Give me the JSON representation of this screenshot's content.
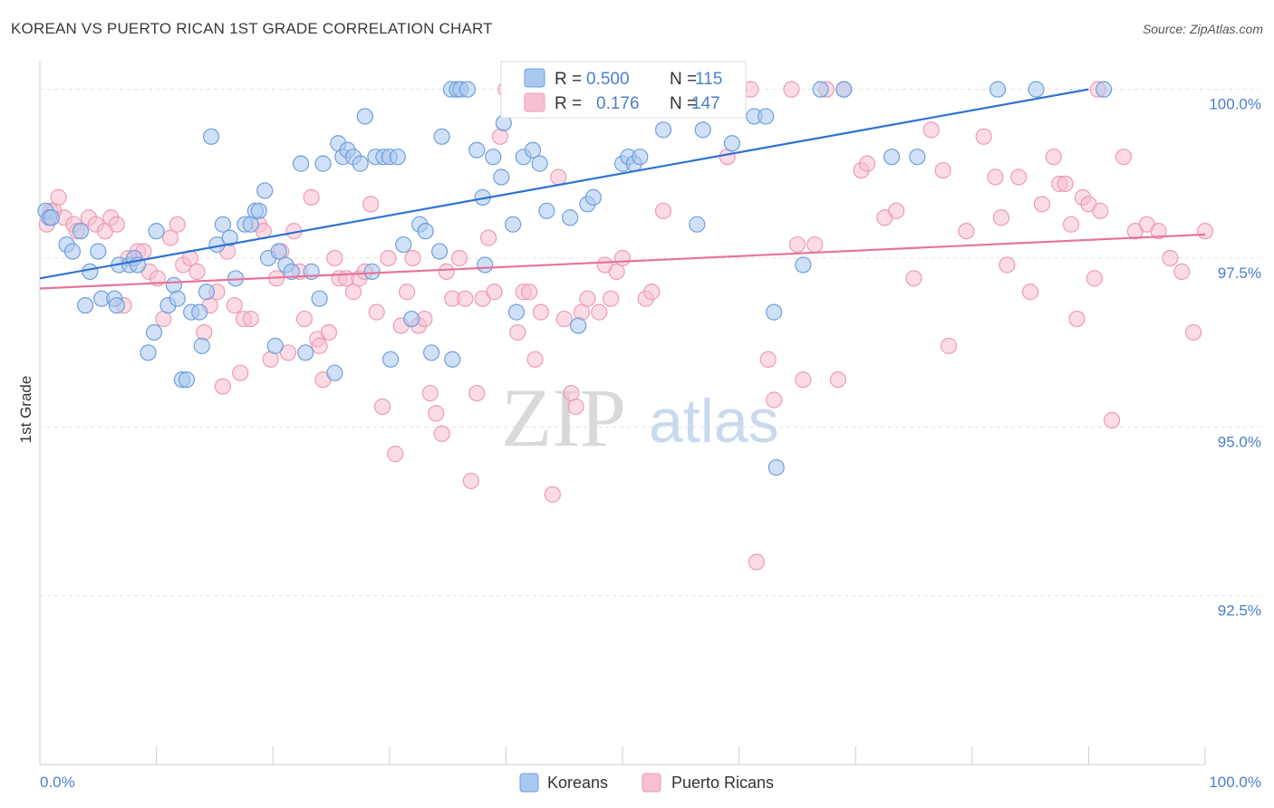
{
  "title": "KOREAN VS PUERTO RICAN 1ST GRADE CORRELATION CHART",
  "source": "Source: ZipAtlas.com",
  "watermark": {
    "zip": "ZIP",
    "atlas": "atlas"
  },
  "colors": {
    "korean_fill": "#a9c8f0",
    "korean_stroke": "#6f9fdc",
    "korean_line": "#2f72d3",
    "pr_fill": "#f7bfd0",
    "pr_stroke": "#ef9ab5",
    "pr_line": "#e8739a",
    "accent_text": "#4a7fcf",
    "grid": "#e0e0e0"
  },
  "legend_top": {
    "rows": [
      {
        "r_label": "R =",
        "r_value": "0.500",
        "n_label": "N =",
        "n_value": "115"
      },
      {
        "r_label": "R =",
        "r_value": "0.176",
        "n_label": "N =",
        "n_value": "147"
      }
    ]
  },
  "legend_bottom": [
    "Koreans",
    "Puerto Ricans"
  ],
  "chart_data": {
    "type": "scatter",
    "title": "KOREAN VS PUERTO RICAN 1ST GRADE CORRELATION CHART",
    "xlabel": "",
    "ylabel": "1st Grade",
    "x_tick_labels": [
      "0.0%",
      "100.0%"
    ],
    "y_tick_labels": [
      "100.0%",
      "97.5%",
      "95.0%",
      "92.5%"
    ],
    "y_ticks": [
      100.0,
      97.5,
      95.0,
      92.5
    ],
    "xlim": [
      0,
      100
    ],
    "ylim": [
      90.0,
      100.25
    ],
    "grid": true,
    "legend_position": "top-center",
    "series": [
      {
        "name": "Koreans",
        "R": 0.5,
        "N": 115,
        "trend": {
          "x": [
            0,
            90
          ],
          "y": [
            97.2,
            100.0
          ]
        },
        "points": [
          [
            0.5,
            98.2
          ],
          [
            0.8,
            98.1
          ],
          [
            1.0,
            98.1
          ],
          [
            2.3,
            97.7
          ],
          [
            2.8,
            97.6
          ],
          [
            3.5,
            97.9
          ],
          [
            3.9,
            96.8
          ],
          [
            4.3,
            97.3
          ],
          [
            5.0,
            97.6
          ],
          [
            5.3,
            96.9
          ],
          [
            6.4,
            96.9
          ],
          [
            6.6,
            96.8
          ],
          [
            6.8,
            97.4
          ],
          [
            7.7,
            97.4
          ],
          [
            8.1,
            97.5
          ],
          [
            8.4,
            97.4
          ],
          [
            9.3,
            96.1
          ],
          [
            9.8,
            96.4
          ],
          [
            10.0,
            97.9
          ],
          [
            11.0,
            96.8
          ],
          [
            11.5,
            97.1
          ],
          [
            11.8,
            96.9
          ],
          [
            12.2,
            95.7
          ],
          [
            12.6,
            95.7
          ],
          [
            13.0,
            96.7
          ],
          [
            13.7,
            96.7
          ],
          [
            13.9,
            96.2
          ],
          [
            14.3,
            97.0
          ],
          [
            14.7,
            99.3
          ],
          [
            15.2,
            97.7
          ],
          [
            15.7,
            98.0
          ],
          [
            16.3,
            97.8
          ],
          [
            16.8,
            97.2
          ],
          [
            17.6,
            98.0
          ],
          [
            18.1,
            98.0
          ],
          [
            18.5,
            98.2
          ],
          [
            18.8,
            98.2
          ],
          [
            19.3,
            98.5
          ],
          [
            19.6,
            97.5
          ],
          [
            20.2,
            96.2
          ],
          [
            20.5,
            97.6
          ],
          [
            21.1,
            97.4
          ],
          [
            21.6,
            97.3
          ],
          [
            22.4,
            98.9
          ],
          [
            22.8,
            96.1
          ],
          [
            23.3,
            97.3
          ],
          [
            24.0,
            96.9
          ],
          [
            24.3,
            98.9
          ],
          [
            25.3,
            95.8
          ],
          [
            25.6,
            99.2
          ],
          [
            26.0,
            99.0
          ],
          [
            26.4,
            99.1
          ],
          [
            26.9,
            99.0
          ],
          [
            27.5,
            98.9
          ],
          [
            27.9,
            99.6
          ],
          [
            28.5,
            97.3
          ],
          [
            28.8,
            99.0
          ],
          [
            29.5,
            99.0
          ],
          [
            30.0,
            99.0
          ],
          [
            30.7,
            99.0
          ],
          [
            31.2,
            97.7
          ],
          [
            31.9,
            96.6
          ],
          [
            32.6,
            98.0
          ],
          [
            33.1,
            97.9
          ],
          [
            33.6,
            96.1
          ],
          [
            34.3,
            97.6
          ],
          [
            34.5,
            99.3
          ],
          [
            35.3,
            100.0
          ],
          [
            35.8,
            100.0
          ],
          [
            36.1,
            100.0
          ],
          [
            36.7,
            100.0
          ],
          [
            37.5,
            99.1
          ],
          [
            38.0,
            98.4
          ],
          [
            38.2,
            97.4
          ],
          [
            38.9,
            99.0
          ],
          [
            39.6,
            98.7
          ],
          [
            39.8,
            99.5
          ],
          [
            40.6,
            98.0
          ],
          [
            40.9,
            96.7
          ],
          [
            41.5,
            99.0
          ],
          [
            42.3,
            99.1
          ],
          [
            42.9,
            98.9
          ],
          [
            43.5,
            98.2
          ],
          [
            45.5,
            98.1
          ],
          [
            46.2,
            96.5
          ],
          [
            47.0,
            98.3
          ],
          [
            47.5,
            98.4
          ],
          [
            50.0,
            98.9
          ],
          [
            50.5,
            99.0
          ],
          [
            51.0,
            98.9
          ],
          [
            51.5,
            99.0
          ],
          [
            53.0,
            100.0
          ],
          [
            53.5,
            99.4
          ],
          [
            56.4,
            98.0
          ],
          [
            56.9,
            99.4
          ],
          [
            59.4,
            99.2
          ],
          [
            61.3,
            99.6
          ],
          [
            62.3,
            99.6
          ],
          [
            63.0,
            96.7
          ],
          [
            63.2,
            94.4
          ],
          [
            65.5,
            97.4
          ],
          [
            67.0,
            100.0
          ],
          [
            69.0,
            100.0
          ],
          [
            73.1,
            99.0
          ],
          [
            75.3,
            99.0
          ],
          [
            82.2,
            100.0
          ],
          [
            85.5,
            100.0
          ],
          [
            91.3,
            100.0
          ],
          [
            35.4,
            96.0
          ],
          [
            30.1,
            96.0
          ]
        ]
      },
      {
        "name": "Puerto Ricans",
        "R": 0.176,
        "N": 147,
        "trend": {
          "x": [
            0,
            100
          ],
          "y": [
            97.05,
            97.85
          ]
        },
        "points": [
          [
            0.6,
            98.0
          ],
          [
            0.9,
            98.2
          ],
          [
            1.2,
            98.2
          ],
          [
            1.6,
            98.4
          ],
          [
            2.1,
            98.1
          ],
          [
            2.9,
            98.0
          ],
          [
            3.2,
            97.9
          ],
          [
            4.2,
            98.1
          ],
          [
            4.8,
            98.0
          ],
          [
            5.6,
            97.9
          ],
          [
            6.1,
            98.1
          ],
          [
            6.6,
            98.0
          ],
          [
            7.2,
            96.8
          ],
          [
            7.6,
            97.5
          ],
          [
            8.4,
            97.6
          ],
          [
            8.9,
            97.6
          ],
          [
            9.4,
            97.3
          ],
          [
            10.1,
            97.2
          ],
          [
            10.6,
            96.6
          ],
          [
            11.2,
            97.8
          ],
          [
            11.8,
            98.0
          ],
          [
            12.3,
            97.4
          ],
          [
            12.9,
            97.5
          ],
          [
            13.5,
            97.3
          ],
          [
            14.1,
            96.4
          ],
          [
            14.6,
            96.8
          ],
          [
            15.2,
            97.0
          ],
          [
            15.7,
            95.6
          ],
          [
            16.1,
            97.6
          ],
          [
            16.7,
            96.8
          ],
          [
            17.2,
            95.8
          ],
          [
            17.5,
            96.6
          ],
          [
            18.1,
            96.6
          ],
          [
            18.8,
            98.0
          ],
          [
            19.2,
            97.9
          ],
          [
            19.8,
            96.0
          ],
          [
            20.3,
            97.2
          ],
          [
            20.7,
            97.6
          ],
          [
            21.3,
            96.1
          ],
          [
            21.8,
            97.9
          ],
          [
            22.3,
            97.3
          ],
          [
            22.7,
            96.6
          ],
          [
            23.3,
            98.4
          ],
          [
            23.8,
            96.3
          ],
          [
            24.3,
            95.7
          ],
          [
            24.8,
            96.4
          ],
          [
            25.3,
            97.5
          ],
          [
            25.7,
            97.2
          ],
          [
            26.3,
            97.2
          ],
          [
            26.9,
            97.0
          ],
          [
            27.4,
            97.2
          ],
          [
            27.9,
            97.3
          ],
          [
            28.4,
            98.3
          ],
          [
            28.9,
            96.7
          ],
          [
            29.4,
            95.3
          ],
          [
            29.9,
            97.5
          ],
          [
            30.5,
            94.6
          ],
          [
            31.0,
            96.5
          ],
          [
            31.5,
            97.0
          ],
          [
            32.0,
            97.5
          ],
          [
            32.5,
            96.5
          ],
          [
            33.0,
            96.6
          ],
          [
            33.5,
            95.5
          ],
          [
            34.0,
            95.2
          ],
          [
            34.5,
            94.9
          ],
          [
            34.9,
            97.3
          ],
          [
            35.4,
            96.9
          ],
          [
            36.0,
            97.5
          ],
          [
            36.5,
            96.9
          ],
          [
            37.0,
            94.2
          ],
          [
            37.5,
            95.5
          ],
          [
            38.0,
            96.9
          ],
          [
            38.5,
            97.8
          ],
          [
            39.0,
            97.0
          ],
          [
            39.5,
            99.3
          ],
          [
            40.0,
            100.0
          ],
          [
            41.0,
            96.4
          ],
          [
            41.5,
            97.0
          ],
          [
            42.0,
            97.0
          ],
          [
            42.5,
            96.0
          ],
          [
            43.0,
            96.7
          ],
          [
            43.5,
            100.0
          ],
          [
            44.0,
            94.0
          ],
          [
            44.5,
            98.7
          ],
          [
            45.0,
            96.6
          ],
          [
            45.6,
            95.5
          ],
          [
            46.0,
            95.3
          ],
          [
            46.5,
            96.7
          ],
          [
            47.0,
            96.9
          ],
          [
            47.5,
            100.0
          ],
          [
            48.0,
            96.7
          ],
          [
            48.5,
            97.4
          ],
          [
            49.0,
            96.9
          ],
          [
            49.5,
            97.3
          ],
          [
            50.0,
            97.5
          ],
          [
            50.5,
            100.0
          ],
          [
            51.0,
            100.0
          ],
          [
            52.0,
            96.9
          ],
          [
            52.5,
            97.0
          ],
          [
            53.5,
            98.2
          ],
          [
            54.5,
            100.0
          ],
          [
            57.5,
            100.0
          ],
          [
            58.0,
            100.0
          ],
          [
            59.0,
            99.0
          ],
          [
            60.0,
            100.0
          ],
          [
            61.0,
            100.0
          ],
          [
            61.5,
            93.0
          ],
          [
            62.5,
            96.0
          ],
          [
            63.0,
            95.4
          ],
          [
            64.5,
            100.0
          ],
          [
            65.0,
            97.7
          ],
          [
            65.5,
            95.7
          ],
          [
            66.5,
            97.7
          ],
          [
            67.5,
            100.0
          ],
          [
            68.5,
            95.7
          ],
          [
            69.0,
            100.0
          ],
          [
            70.5,
            98.8
          ],
          [
            71.0,
            98.9
          ],
          [
            72.5,
            98.1
          ],
          [
            73.5,
            98.2
          ],
          [
            75.0,
            97.2
          ],
          [
            76.5,
            99.4
          ],
          [
            77.5,
            98.8
          ],
          [
            78.0,
            96.2
          ],
          [
            79.5,
            97.9
          ],
          [
            81.0,
            99.3
          ],
          [
            82.0,
            98.7
          ],
          [
            82.5,
            98.1
          ],
          [
            83.0,
            97.4
          ],
          [
            84.0,
            98.7
          ],
          [
            85.0,
            97.0
          ],
          [
            86.0,
            98.3
          ],
          [
            87.0,
            99.0
          ],
          [
            87.5,
            98.6
          ],
          [
            88.0,
            98.6
          ],
          [
            88.5,
            98.0
          ],
          [
            89.0,
            96.6
          ],
          [
            89.5,
            98.4
          ],
          [
            90.0,
            98.3
          ],
          [
            90.5,
            97.2
          ],
          [
            91.0,
            98.2
          ],
          [
            92.0,
            95.1
          ],
          [
            93.0,
            99.0
          ],
          [
            94.0,
            97.9
          ],
          [
            95.0,
            98.0
          ],
          [
            96.0,
            97.9
          ],
          [
            97.0,
            97.5
          ],
          [
            98.0,
            97.3
          ],
          [
            99.0,
            96.4
          ],
          [
            100.0,
            97.9
          ],
          [
            90.8,
            100.0
          ],
          [
            24.0,
            96.2
          ]
        ]
      }
    ]
  }
}
